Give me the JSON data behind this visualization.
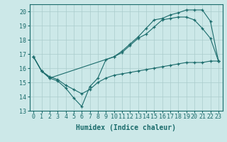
{
  "title": "",
  "xlabel": "Humidex (Indice chaleur)",
  "background_color": "#cce8e8",
  "grid_color": "#aacccc",
  "line_color": "#1a6b6b",
  "xlim": [
    -0.5,
    23.5
  ],
  "ylim": [
    13,
    20.5
  ],
  "yticks": [
    13,
    14,
    15,
    16,
    17,
    18,
    19,
    20
  ],
  "xticks": [
    0,
    1,
    2,
    3,
    4,
    5,
    6,
    7,
    8,
    9,
    10,
    11,
    12,
    13,
    14,
    15,
    16,
    17,
    18,
    19,
    20,
    21,
    22,
    23
  ],
  "curve1_x": [
    0,
    1,
    2,
    3,
    4,
    5,
    6,
    7,
    8,
    9,
    10,
    11,
    12,
    13,
    14,
    15,
    16,
    17,
    18,
    19,
    20,
    21,
    22,
    23
  ],
  "curve1_y": [
    16.8,
    15.8,
    15.3,
    15.1,
    14.6,
    13.9,
    13.3,
    14.7,
    15.3,
    16.6,
    16.8,
    17.1,
    17.6,
    18.1,
    18.4,
    18.9,
    19.4,
    19.5,
    19.6,
    19.6,
    19.4,
    18.8,
    18.1,
    16.5
  ],
  "curve2_x": [
    0,
    1,
    2,
    10,
    11,
    12,
    13,
    14,
    15,
    16,
    17,
    18,
    19,
    20,
    21,
    22,
    23
  ],
  "curve2_y": [
    16.8,
    15.8,
    15.3,
    16.8,
    17.2,
    17.7,
    18.2,
    18.8,
    19.4,
    19.5,
    19.75,
    19.9,
    20.1,
    20.1,
    20.1,
    19.3,
    16.5
  ],
  "curve3_x": [
    0,
    1,
    2,
    3,
    4,
    5,
    6,
    7,
    8,
    9,
    10,
    11,
    12,
    13,
    14,
    15,
    16,
    17,
    18,
    19,
    20,
    21,
    22,
    23
  ],
  "curve3_y": [
    16.8,
    15.8,
    15.4,
    15.2,
    14.8,
    14.5,
    14.2,
    14.5,
    15.0,
    15.3,
    15.5,
    15.6,
    15.7,
    15.8,
    15.9,
    16.0,
    16.1,
    16.2,
    16.3,
    16.4,
    16.4,
    16.4,
    16.5,
    16.5
  ],
  "tick_fontsize": 6,
  "xlabel_fontsize": 7
}
